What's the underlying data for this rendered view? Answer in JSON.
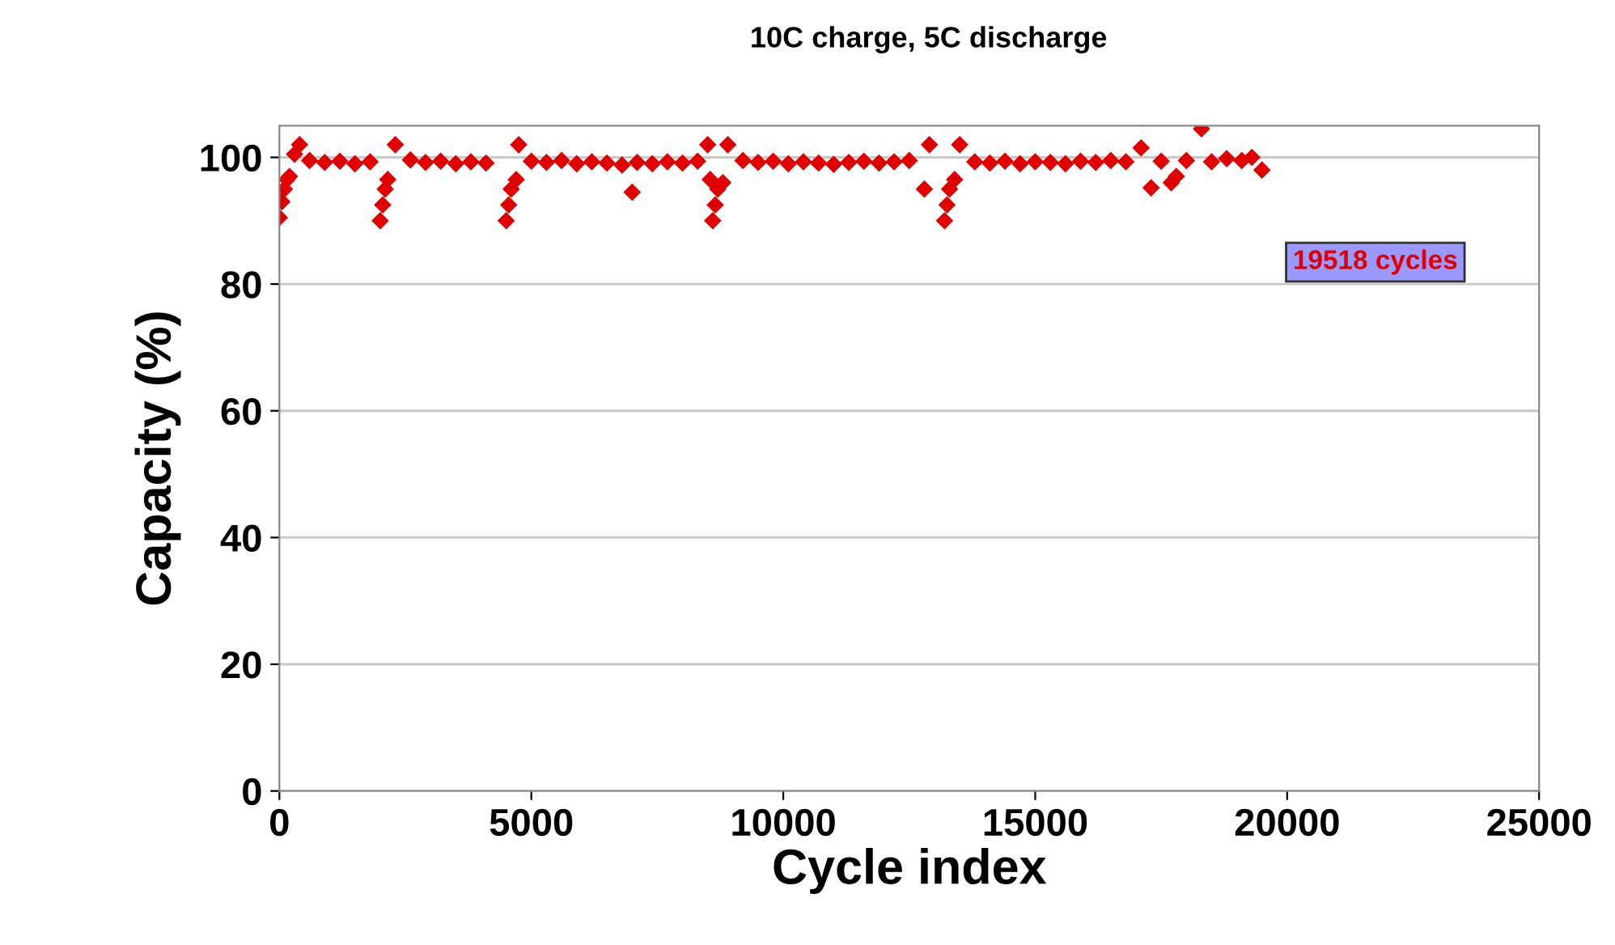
{
  "chart_data": {
    "type": "scatter",
    "title": "10C charge, 5C discharge",
    "xlabel": "Cycle index",
    "ylabel": "Capacity (%)",
    "xlim": [
      0,
      25000
    ],
    "xticks": [
      0,
      5000,
      10000,
      15000,
      20000,
      25000
    ],
    "ylim": [
      0,
      105
    ],
    "yticks": [
      0,
      20,
      40,
      60,
      80,
      100
    ],
    "grid": "y",
    "marker": "diamond",
    "annotations": [
      "19518 cycles"
    ],
    "series": [
      {
        "color": "#e00000",
        "x": [
          0,
          50,
          100,
          150,
          200,
          300,
          400,
          600,
          900,
          1200,
          1500,
          1800,
          2000,
          2050,
          2100,
          2150,
          2300,
          2600,
          2900,
          3200,
          3500,
          3800,
          4100,
          4500,
          4550,
          4600,
          4700,
          4750,
          5000,
          5300,
          5600,
          5900,
          6200,
          6500,
          6800,
          7000,
          7100,
          7400,
          7700,
          8000,
          8300,
          8500,
          8550,
          8600,
          8650,
          8700,
          8800,
          8900,
          9200,
          9500,
          9800,
          10100,
          10400,
          10700,
          11000,
          11300,
          11600,
          11900,
          12200,
          12500,
          12800,
          12900,
          13200,
          13250,
          13300,
          13400,
          13500,
          13800,
          14100,
          14400,
          14700,
          15000,
          15300,
          15600,
          15900,
          16200,
          16500,
          16800,
          17100,
          17300,
          17500,
          17700,
          17800,
          18000,
          18300,
          18500,
          18800,
          19100,
          19300,
          19500
        ],
        "values": [
          90.5,
          93,
          95,
          96.5,
          97,
          100.5,
          102,
          99.5,
          99.2,
          99.4,
          99,
          99.3,
          90,
          92.5,
          95,
          96.5,
          102,
          99.6,
          99.2,
          99.4,
          99,
          99.3,
          99.1,
          90,
          92.5,
          95,
          96.5,
          102,
          99.4,
          99.2,
          99.5,
          99,
          99.3,
          99.1,
          98.8,
          94.5,
          99.2,
          99,
          99.3,
          99.1,
          99.4,
          102,
          96.5,
          90,
          92.5,
          95,
          96,
          102,
          99.5,
          99.2,
          99.4,
          99,
          99.3,
          99.1,
          98.9,
          99.2,
          99.4,
          99.1,
          99.3,
          99.5,
          95,
          102,
          90,
          92.5,
          95,
          96.5,
          102,
          99.3,
          99.1,
          99.4,
          99,
          99.3,
          99.2,
          99,
          99.4,
          99.2,
          99.5,
          99.3,
          101.5,
          95.2,
          99.4,
          96,
          97,
          99.5,
          104.5,
          99.3,
          99.8,
          99.5,
          100,
          98
        ]
      }
    ]
  }
}
